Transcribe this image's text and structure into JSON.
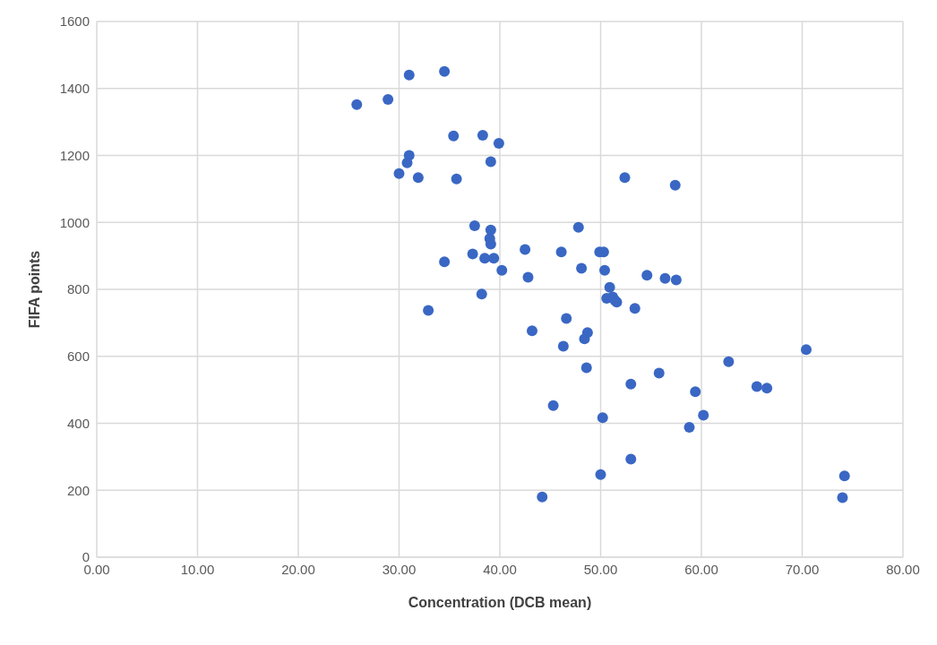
{
  "chart_data": {
    "type": "scatter",
    "xlabel": "Concentration (DCB mean)",
    "ylabel": "FIFA points",
    "x": [
      25.8,
      28.9,
      31.0,
      34.5,
      35.4,
      38.3,
      39.9,
      31.0,
      30.8,
      30.0,
      31.9,
      35.7,
      39.1,
      52.4,
      57.4,
      37.5,
      39.1,
      39.0,
      39.1,
      47.8,
      37.3,
      38.5,
      39.4,
      34.5,
      42.5,
      46.1,
      49.9,
      50.3,
      40.2,
      42.8,
      48.1,
      50.4,
      54.6,
      56.4,
      57.5,
      38.2,
      50.9,
      50.6,
      51.2,
      51.4,
      51.6,
      53.4,
      32.9,
      46.6,
      43.2,
      48.7,
      48.4,
      46.3,
      48.6,
      55.8,
      62.7,
      70.4,
      53.0,
      59.4,
      45.3,
      50.2,
      60.2,
      58.8,
      65.5,
      66.5,
      53.0,
      50.0,
      44.2,
      74.2,
      74.0
    ],
    "series": [
      {
        "color": "#3a67c4",
        "values": [
          1352,
          1367,
          1440,
          1451,
          1258,
          1260,
          1236,
          1200,
          1178,
          1146,
          1134,
          1130,
          1181,
          1134,
          1111,
          990,
          977,
          952,
          935,
          985,
          906,
          893,
          893,
          882,
          919,
          912,
          912,
          912,
          857,
          836,
          863,
          857,
          842,
          833,
          828,
          786,
          806,
          773,
          777,
          768,
          762,
          743,
          737,
          713,
          676,
          671,
          652,
          630,
          566,
          550,
          584,
          620,
          517,
          494,
          453,
          417,
          424,
          388,
          510,
          505,
          293,
          247,
          180,
          243,
          178
        ]
      }
    ],
    "xlim": [
      0,
      80
    ],
    "xticks": [
      {
        "value": 0,
        "label": "0.00"
      },
      {
        "value": 10,
        "label": "10.00"
      },
      {
        "value": 20,
        "label": "20.00"
      },
      {
        "value": 30,
        "label": "30.00"
      },
      {
        "value": 40,
        "label": "40.00"
      },
      {
        "value": 50,
        "label": "50.00"
      },
      {
        "value": 60,
        "label": "60.00"
      },
      {
        "value": 70,
        "label": "70.00"
      },
      {
        "value": 80,
        "label": "80.00"
      }
    ],
    "ylim": [
      0,
      1600
    ],
    "yticks": [
      0,
      200,
      400,
      600,
      800,
      1000,
      1200,
      1400,
      1600
    ],
    "grid": true,
    "marker": "circle"
  }
}
